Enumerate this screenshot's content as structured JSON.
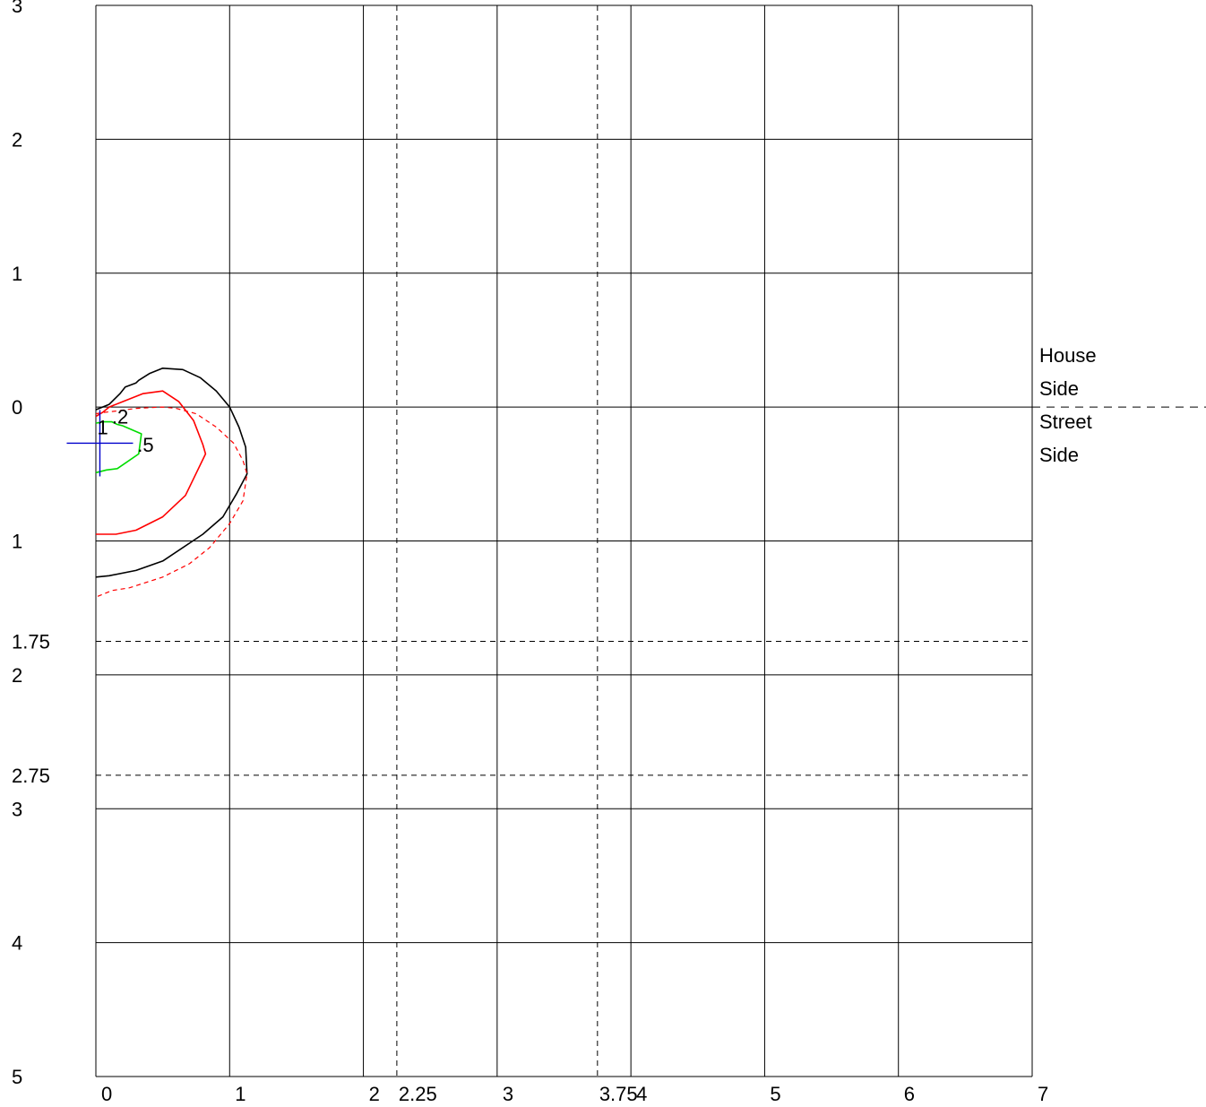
{
  "chart_data": {
    "type": "line",
    "title": "",
    "xlabel": "",
    "ylabel": "",
    "xlim": [
      0,
      7
    ],
    "ylim": [
      -3,
      5
    ],
    "grid": true,
    "x_ticks": [
      {
        "value": 0,
        "label": "0"
      },
      {
        "value": 1,
        "label": "1"
      },
      {
        "value": 2,
        "label": "2"
      },
      {
        "value": 3,
        "label": "3"
      },
      {
        "value": 4,
        "label": "4"
      },
      {
        "value": 5,
        "label": "5"
      },
      {
        "value": 6,
        "label": "6"
      },
      {
        "value": 7,
        "label": "7"
      }
    ],
    "y_ticks": [
      {
        "value": -3,
        "label": "3"
      },
      {
        "value": -2,
        "label": "2"
      },
      {
        "value": -1,
        "label": "1"
      },
      {
        "value": 0,
        "label": "0"
      },
      {
        "value": 1,
        "label": "1"
      },
      {
        "value": 2,
        "label": "2"
      },
      {
        "value": 3,
        "label": "3"
      },
      {
        "value": 4,
        "label": "4"
      },
      {
        "value": 5,
        "label": "5"
      }
    ],
    "reference_lines": {
      "x": [
        {
          "value": 2.25,
          "label": "2.25"
        },
        {
          "value": 3.75,
          "label": "3.75"
        }
      ],
      "y": [
        {
          "value": 1.75,
          "label": "1.75"
        },
        {
          "value": 2.75,
          "label": "2.75"
        }
      ]
    },
    "divider": {
      "y": 0,
      "labels": [
        "House",
        "Side",
        "Street",
        "Side"
      ]
    },
    "marker": {
      "x": 0.03,
      "y": 0.27,
      "color": "#0000cc"
    },
    "series": [
      {
        "color": "#00dd00",
        "dashed": false,
        "label": ".5",
        "points": [
          [
            0,
            0.12
          ],
          [
            0.05,
            0.11
          ],
          [
            0.12,
            0.11
          ],
          [
            0.16,
            0.13
          ],
          [
            0.2,
            0.14
          ],
          [
            0.34,
            0.2
          ],
          [
            0.32,
            0.35
          ],
          [
            0.16,
            0.46
          ],
          [
            0.08,
            0.47
          ],
          [
            0,
            0.49
          ]
        ]
      },
      {
        "color": "#ff0000",
        "dashed": false,
        "label": "1",
        "points": [
          [
            0,
            0.07
          ],
          [
            0.05,
            0.04
          ],
          [
            0.1,
            0
          ],
          [
            0.2,
            -0.04
          ],
          [
            0.35,
            -0.1
          ],
          [
            0.5,
            -0.12
          ],
          [
            0.62,
            -0.04
          ],
          [
            0.73,
            0.1
          ],
          [
            0.8,
            0.28
          ],
          [
            0.82,
            0.35
          ],
          [
            0.67,
            0.66
          ],
          [
            0.5,
            0.82
          ],
          [
            0.3,
            0.92
          ],
          [
            0.15,
            0.95
          ],
          [
            0,
            0.95
          ]
        ]
      },
      {
        "color": "#000000",
        "dashed": false,
        "label": "2",
        "points": [
          [
            0,
            0.02
          ],
          [
            0.05,
            0
          ],
          [
            0.1,
            -0.02
          ],
          [
            0.18,
            -0.1
          ],
          [
            0.22,
            -0.15
          ],
          [
            0.3,
            -0.18
          ],
          [
            0.32,
            -0.2
          ],
          [
            0.4,
            -0.25
          ],
          [
            0.5,
            -0.29
          ],
          [
            0.65,
            -0.28
          ],
          [
            0.78,
            -0.22
          ],
          [
            0.9,
            -0.12
          ],
          [
            1.0,
            0
          ],
          [
            1.07,
            0.15
          ],
          [
            1.12,
            0.3
          ],
          [
            1.13,
            0.5
          ],
          [
            1.05,
            0.65
          ],
          [
            0.95,
            0.82
          ],
          [
            0.8,
            0.95
          ],
          [
            0.5,
            1.15
          ],
          [
            0.3,
            1.22
          ],
          [
            0.1,
            1.26
          ],
          [
            0,
            1.27
          ]
        ]
      },
      {
        "color": "#ff0000",
        "dashed": true,
        "label": "",
        "points": [
          [
            0,
            0.05
          ],
          [
            0.06,
            0.04
          ],
          [
            0.15,
            0.03
          ],
          [
            0.3,
            0.01
          ],
          [
            0.5,
            0
          ],
          [
            0.6,
            0.01
          ],
          [
            0.75,
            0.05
          ],
          [
            0.9,
            0.15
          ],
          [
            1.03,
            0.27
          ],
          [
            1.1,
            0.4
          ],
          [
            1.13,
            0.5
          ],
          [
            1.1,
            0.7
          ],
          [
            1.0,
            0.87
          ],
          [
            0.85,
            1.05
          ],
          [
            0.7,
            1.17
          ],
          [
            0.5,
            1.27
          ],
          [
            0.25,
            1.35
          ],
          [
            0.12,
            1.37
          ],
          [
            0,
            1.42
          ]
        ]
      }
    ],
    "annotations": [
      {
        "text": "1",
        "x": 0.01,
        "y": 0.15
      },
      {
        "text": ".2",
        "x": 0.12,
        "y": 0.07
      },
      {
        "text": ".5",
        "x": 0.31,
        "y": 0.28
      }
    ]
  }
}
